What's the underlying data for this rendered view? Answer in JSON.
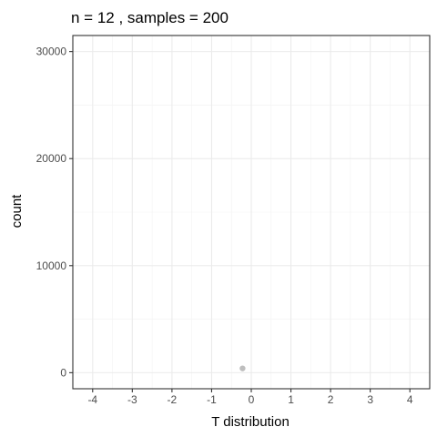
{
  "chart_data": {
    "type": "scatter",
    "title": "n = 12 , samples = 200",
    "xlabel": "T distribution",
    "ylabel": "count",
    "xlim": [
      -4.5,
      4.5
    ],
    "ylim": [
      -1500,
      31500
    ],
    "x_ticks": [
      -4,
      -3,
      -2,
      -1,
      0,
      1,
      2,
      3,
      4
    ],
    "x_tick_labels": [
      "-4",
      "-3",
      "-2",
      "-1",
      "0",
      "1",
      "2",
      "3",
      "4"
    ],
    "y_ticks": [
      0,
      10000,
      20000,
      30000
    ],
    "y_tick_labels": [
      "0",
      "10000",
      "20000",
      "30000"
    ],
    "grid": true,
    "legend": "none",
    "points": [
      {
        "x": -0.22,
        "y": 400
      }
    ],
    "point_color": "#bebebe"
  }
}
